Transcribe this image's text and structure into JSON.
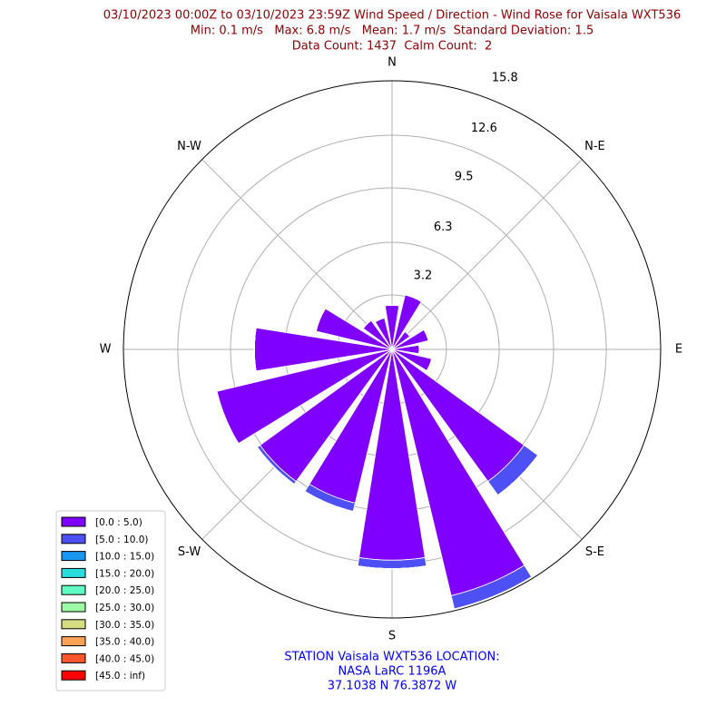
{
  "chart_data": {
    "type": "windrose",
    "title": [
      "03/10/2023 00:00Z to 03/10/2023 23:59Z Wind Speed / Direction - Wind Rose for Vaisala WXT536",
      "Min: 0.1 m/s   Max: 6.8 m/s   Mean: 1.7 m/s  Standard Deviation: 1.5",
      "Data Count: 1437  Calm Count:  2"
    ],
    "footer": [
      "STATION Vaisala WXT536 LOCATION:",
      "NASA LaRC 1196A",
      "37.1038 N 76.3872 W"
    ],
    "categories": [
      "N",
      null,
      "N-E",
      null,
      "E",
      null,
      "S-E",
      null,
      "S",
      null,
      "S-W",
      null,
      "W",
      null,
      "N-W",
      null
    ],
    "rlim": [
      0,
      15.8
    ],
    "rticks": [
      3.2,
      6.3,
      9.5,
      12.6,
      15.8
    ],
    "grid": true,
    "legend": "lower left",
    "series": [
      {
        "name": "[0.0 : 5.0)",
        "color": "#8000ff",
        "values": [
          2.6,
          3.3,
          1.3,
          2.2,
          1.6,
          2.4,
          9.6,
          14.9,
          12.4,
          9.3,
          9.6,
          10.6,
          8.1,
          4.6,
          2.1,
          1.9
        ]
      },
      {
        "name": "[5.0 : 10.0)",
        "color": "#4c50f5",
        "values": [
          0,
          0,
          0,
          0,
          0,
          0,
          1.0,
          0.8,
          0.5,
          0.5,
          0.2,
          0,
          0,
          0,
          0,
          0
        ]
      },
      {
        "name": "[10.0 : 15.0)",
        "color": "#1996f0",
        "values": [
          0,
          0,
          0,
          0,
          0,
          0,
          0,
          0,
          0,
          0,
          0,
          0,
          0,
          0,
          0,
          0
        ]
      },
      {
        "name": "[15.0 : 20.0)",
        "color": "#2adddd",
        "values": [
          0,
          0,
          0,
          0,
          0,
          0,
          0,
          0,
          0,
          0,
          0,
          0,
          0,
          0,
          0,
          0
        ]
      },
      {
        "name": "[20.0 : 25.0)",
        "color": "#62fbc4",
        "values": [
          0,
          0,
          0,
          0,
          0,
          0,
          0,
          0,
          0,
          0,
          0,
          0,
          0,
          0,
          0,
          0
        ]
      },
      {
        "name": "[25.0 : 30.0)",
        "color": "#9cfba4",
        "values": [
          0,
          0,
          0,
          0,
          0,
          0,
          0,
          0,
          0,
          0,
          0,
          0,
          0,
          0,
          0,
          0
        ]
      },
      {
        "name": "[30.0 : 35.0)",
        "color": "#d4dd80",
        "values": [
          0,
          0,
          0,
          0,
          0,
          0,
          0,
          0,
          0,
          0,
          0,
          0,
          0,
          0,
          0,
          0
        ]
      },
      {
        "name": "[35.0 : 40.0)",
        "color": "#ffa256",
        "values": [
          0,
          0,
          0,
          0,
          0,
          0,
          0,
          0,
          0,
          0,
          0,
          0,
          0,
          0,
          0,
          0
        ]
      },
      {
        "name": "[40.0 : 45.0)",
        "color": "#ff562c",
        "values": [
          0,
          0,
          0,
          0,
          0,
          0,
          0,
          0,
          0,
          0,
          0,
          0,
          0,
          0,
          0,
          0
        ]
      },
      {
        "name": "[45.0 : inf)",
        "color": "#ff0000",
        "values": [
          0,
          0,
          0,
          0,
          0,
          0,
          0,
          0,
          0,
          0,
          0,
          0,
          0,
          0,
          0,
          0
        ]
      }
    ]
  }
}
